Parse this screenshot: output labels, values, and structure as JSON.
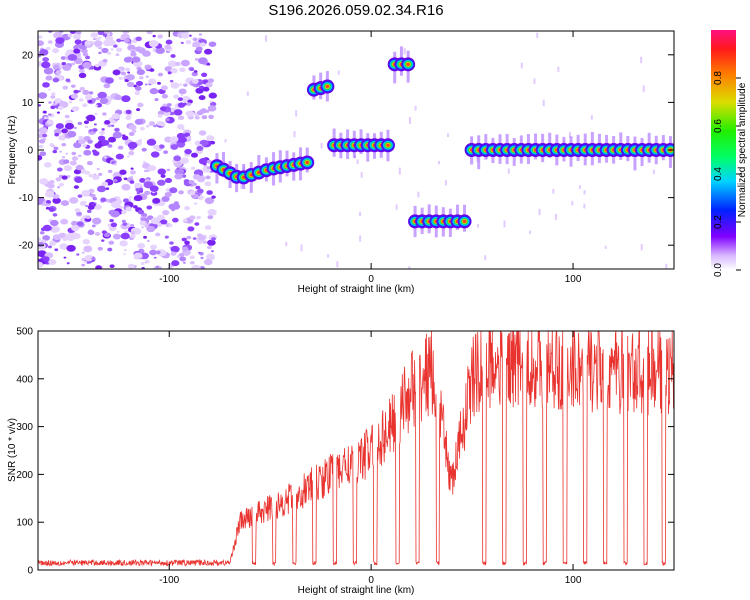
{
  "title": "S196.2026.059.02.34.R16",
  "chart_data": [
    {
      "type": "heatmap",
      "name": "spectrogram",
      "xlabel": "Height of straight line (km)",
      "ylabel": "Frequency (Hz)",
      "xlim": [
        -165,
        150
      ],
      "ylim": [
        -25,
        25
      ],
      "xticks": [
        -100,
        0,
        100
      ],
      "yticks": [
        -20,
        -10,
        0,
        10,
        20
      ],
      "colorbar": {
        "label": "Normalized spectral amplitude",
        "range": [
          0,
          1
        ],
        "ticks": [
          "0.0",
          "0.2",
          "0.4",
          "0.6",
          "0.8"
        ]
      },
      "noise_region_x": [
        -165,
        -78
      ],
      "tone_segments": [
        {
          "x": [
            -78,
            -65
          ],
          "freq": [
            -3,
            -6
          ]
        },
        {
          "x": [
            -65,
            -50
          ],
          "freq": [
            -6,
            -4
          ]
        },
        {
          "x": [
            -50,
            -30
          ],
          "freq": [
            -4,
            -2.5
          ]
        },
        {
          "x": [
            -30,
            -20
          ],
          "freq": [
            12.5,
            13.5
          ]
        },
        {
          "x": [
            -20,
            10
          ],
          "freq": [
            1,
            1
          ]
        },
        {
          "x": [
            10,
            20
          ],
          "freq": [
            18,
            18
          ]
        },
        {
          "x": [
            20,
            48
          ],
          "freq": [
            -15,
            -15
          ]
        },
        {
          "x": [
            48,
            150
          ],
          "freq": [
            0,
            0
          ]
        }
      ]
    },
    {
      "type": "line",
      "name": "snr",
      "xlabel": "Height of straight line (km)",
      "ylabel": "SNR (10 * v/v)",
      "xlim": [
        -165,
        150
      ],
      "ylim": [
        0,
        500
      ],
      "xticks": [
        -100,
        0,
        100
      ],
      "yticks": [
        0,
        100,
        200,
        300,
        400,
        500
      ],
      "color": "#e8332f",
      "envelope": [
        {
          "x": -165,
          "snr": 15
        },
        {
          "x": -70,
          "snr": 15
        },
        {
          "x": -65,
          "snr": 100
        },
        {
          "x": -40,
          "snr": 150
        },
        {
          "x": -20,
          "snr": 200
        },
        {
          "x": 0,
          "snr": 250
        },
        {
          "x": 10,
          "snr": 300
        },
        {
          "x": 20,
          "snr": 380
        },
        {
          "x": 30,
          "snr": 420
        },
        {
          "x": 40,
          "snr": 180
        },
        {
          "x": 50,
          "snr": 400
        },
        {
          "x": 60,
          "snr": 440
        },
        {
          "x": 150,
          "snr": 410
        }
      ],
      "dropouts_x": [
        -58,
        -48,
        -38,
        -28,
        -18,
        -8,
        2,
        13,
        23,
        33,
        56,
        66,
        76,
        86,
        96,
        106,
        116,
        126,
        136,
        145
      ],
      "dropout_level": 10
    }
  ]
}
